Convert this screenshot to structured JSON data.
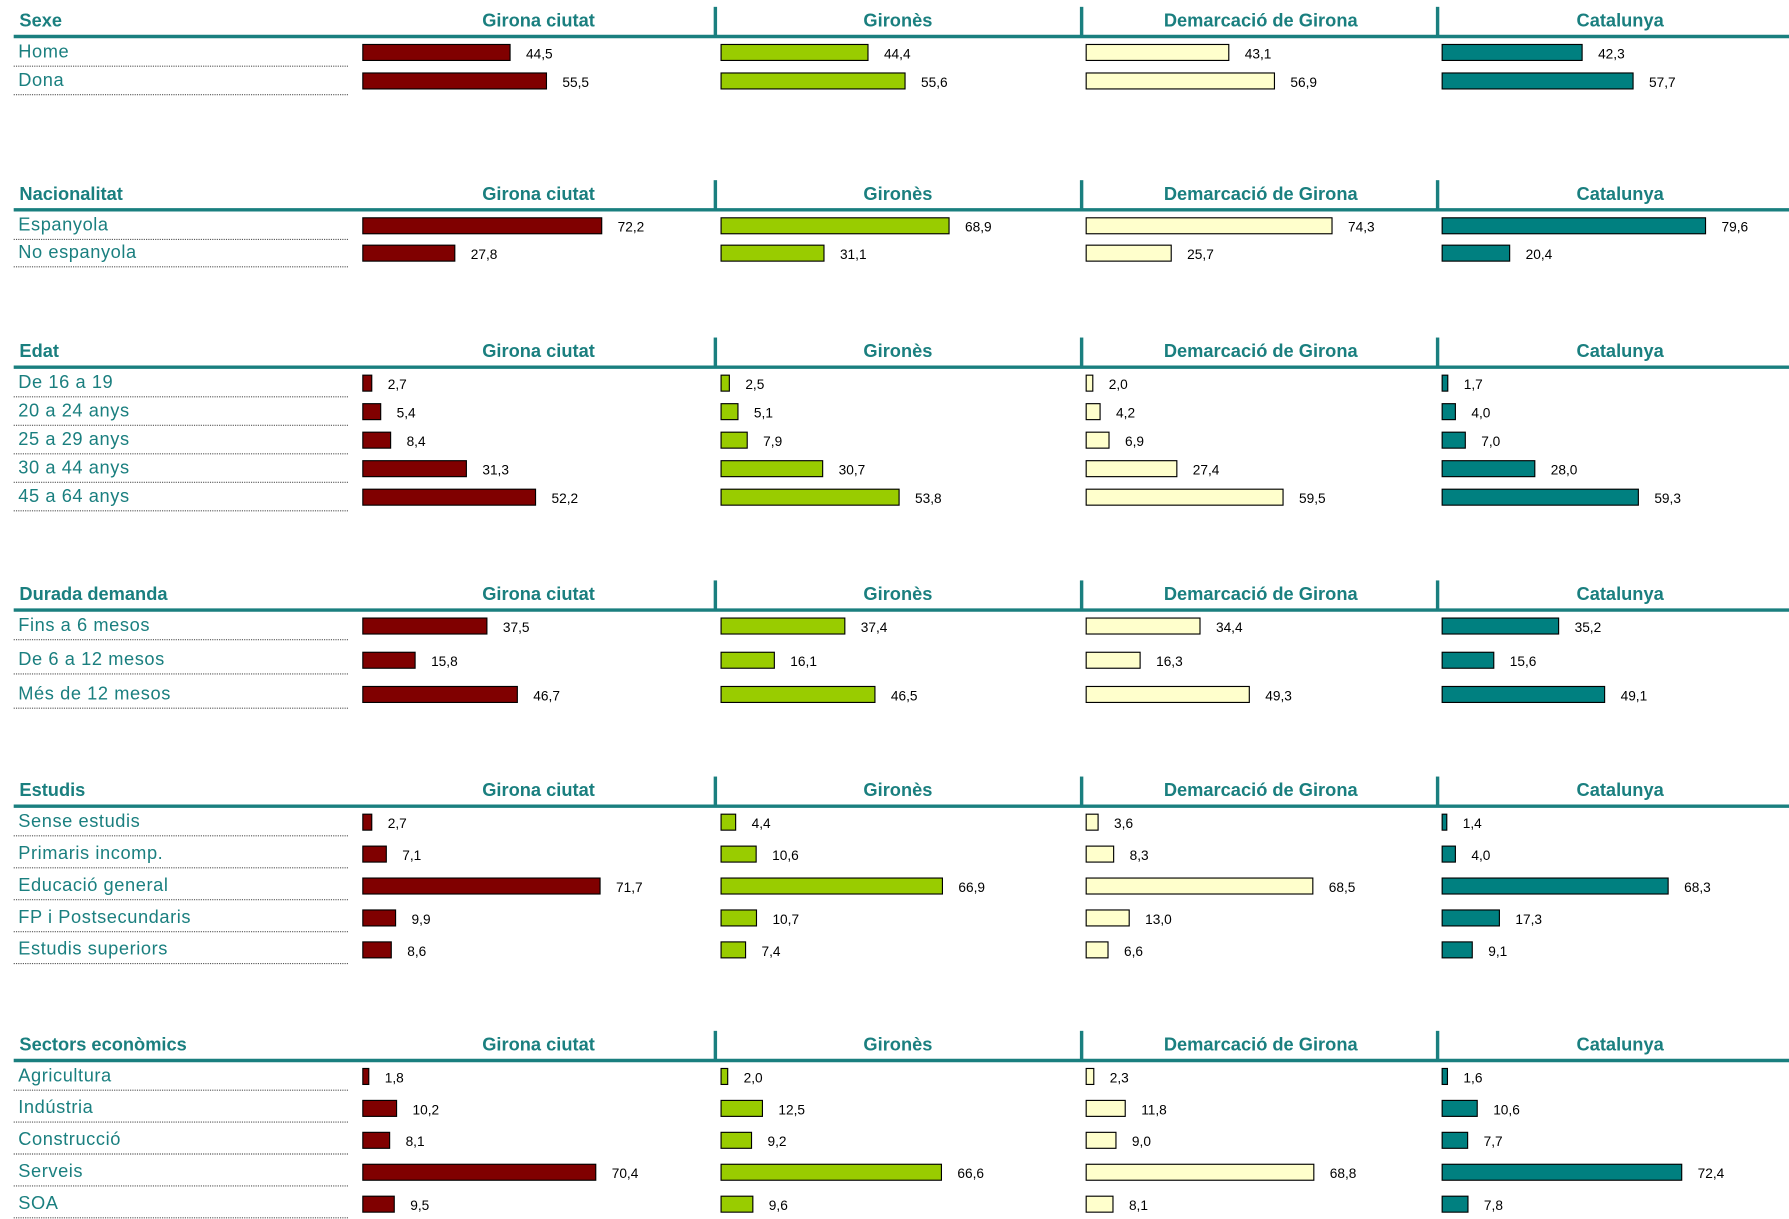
{
  "chart_data": [
    {
      "type": "bar",
      "title": "Sexe",
      "categories": [
        "Home",
        "Dona"
      ],
      "series": [
        {
          "name": "Girona ciutat",
          "color": "#800000",
          "values": [
            44.5,
            55.5
          ],
          "value_labels": [
            "44,5",
            "55,5"
          ]
        },
        {
          "name": "Gironès",
          "color": "#99cc00",
          "values": [
            44.4,
            55.6
          ],
          "value_labels": [
            "44,4",
            "55,6"
          ]
        },
        {
          "name": "Demarcació de Girona",
          "color": "#ffffcc",
          "values": [
            43.1,
            56.9
          ],
          "value_labels": [
            "43,1",
            "56,9"
          ]
        },
        {
          "name": "Catalunya",
          "color": "#008080",
          "values": [
            42.3,
            57.7
          ],
          "value_labels": [
            "42,3",
            "57,7"
          ]
        }
      ]
    },
    {
      "type": "bar",
      "title": "Nacionalitat",
      "categories": [
        "Espanyola",
        "No espanyola"
      ],
      "series": [
        {
          "name": "Girona ciutat",
          "color": "#800000",
          "values": [
            72.2,
            27.8
          ],
          "value_labels": [
            "72,2",
            "27,8"
          ]
        },
        {
          "name": "Gironès",
          "color": "#99cc00",
          "values": [
            68.9,
            31.1
          ],
          "value_labels": [
            "68,9",
            "31,1"
          ]
        },
        {
          "name": "Demarcació de Girona",
          "color": "#ffffcc",
          "values": [
            74.3,
            25.7
          ],
          "value_labels": [
            "74,3",
            "25,7"
          ]
        },
        {
          "name": "Catalunya",
          "color": "#008080",
          "values": [
            79.6,
            20.4
          ],
          "value_labels": [
            "79,6",
            "20,4"
          ]
        }
      ]
    },
    {
      "type": "bar",
      "title": "Edat",
      "categories": [
        "De 16 a 19",
        "20 a 24 anys",
        "25 a 29 anys",
        "30 a 44 anys",
        "45 a 64 anys"
      ],
      "series": [
        {
          "name": "Girona ciutat",
          "color": "#800000",
          "values": [
            2.7,
            5.4,
            8.4,
            31.3,
            52.2
          ],
          "value_labels": [
            "2,7",
            "5,4",
            "8,4",
            "31,3",
            "52,2"
          ]
        },
        {
          "name": "Gironès",
          "color": "#99cc00",
          "values": [
            2.5,
            5.1,
            7.9,
            30.7,
            53.8
          ],
          "value_labels": [
            "2,5",
            "5,1",
            "7,9",
            "30,7",
            "53,8"
          ]
        },
        {
          "name": "Demarcació de Girona",
          "color": "#ffffcc",
          "values": [
            2,
            4.2,
            6.9,
            27.4,
            59.5
          ],
          "value_labels": [
            "2,0",
            "4,2",
            "6,9",
            "27,4",
            "59,5"
          ]
        },
        {
          "name": "Catalunya",
          "color": "#008080",
          "values": [
            1.7,
            4,
            7,
            28,
            59.3
          ],
          "value_labels": [
            "1,7",
            "4,0",
            "7,0",
            "28,0",
            "59,3"
          ]
        }
      ]
    },
    {
      "type": "bar",
      "title": "Durada demanda",
      "categories": [
        "Fins a 6 mesos",
        "De 6 a 12 mesos",
        "Més de 12 mesos"
      ],
      "series": [
        {
          "name": "Girona ciutat",
          "color": "#800000",
          "values": [
            37.5,
            15.8,
            46.7
          ],
          "value_labels": [
            "37,5",
            "15,8",
            "46,7"
          ]
        },
        {
          "name": "Gironès",
          "color": "#99cc00",
          "values": [
            37.4,
            16.1,
            46.5
          ],
          "value_labels": [
            "37,4",
            "16,1",
            "46,5"
          ]
        },
        {
          "name": "Demarcació de Girona",
          "color": "#ffffcc",
          "values": [
            34.4,
            16.3,
            49.3
          ],
          "value_labels": [
            "34,4",
            "16,3",
            "49,3"
          ]
        },
        {
          "name": "Catalunya",
          "color": "#008080",
          "values": [
            35.2,
            15.6,
            49.1
          ],
          "value_labels": [
            "35,2",
            "15,6",
            "49,1"
          ]
        }
      ]
    },
    {
      "type": "bar",
      "title": "Estudis",
      "categories": [
        "Sense estudis",
        "Primaris incomp.",
        "Educació general",
        "FP i Postsecundaris",
        "Estudis superiors"
      ],
      "series": [
        {
          "name": "Girona ciutat",
          "color": "#800000",
          "values": [
            2.7,
            7.1,
            71.7,
            9.9,
            8.6
          ],
          "value_labels": [
            "2,7",
            "7,1",
            "71,7",
            "9,9",
            "8,6"
          ]
        },
        {
          "name": "Gironès",
          "color": "#99cc00",
          "values": [
            4.4,
            10.6,
            66.9,
            10.7,
            7.4
          ],
          "value_labels": [
            "4,4",
            "10,6",
            "66,9",
            "10,7",
            "7,4"
          ]
        },
        {
          "name": "Demarcació de Girona",
          "color": "#ffffcc",
          "values": [
            3.6,
            8.3,
            68.5,
            13,
            6.6
          ],
          "value_labels": [
            "3,6",
            "8,3",
            "68,5",
            "13,0",
            "6,6"
          ]
        },
        {
          "name": "Catalunya",
          "color": "#008080",
          "values": [
            1.4,
            4,
            68.3,
            17.3,
            9.1
          ],
          "value_labels": [
            "1,4",
            "4,0",
            "68,3",
            "17,3",
            "9,1"
          ]
        }
      ]
    },
    {
      "type": "bar",
      "title": "Sectors econòmics",
      "categories": [
        "Agricultura",
        "Indústria",
        "Construcció",
        "Serveis",
        "SOA"
      ],
      "series": [
        {
          "name": "Girona ciutat",
          "color": "#800000",
          "values": [
            1.8,
            10.2,
            8.1,
            70.4,
            9.5
          ],
          "value_labels": [
            "1,8",
            "10,2",
            "8,1",
            "70,4",
            "9,5"
          ]
        },
        {
          "name": "Gironès",
          "color": "#99cc00",
          "values": [
            2,
            12.5,
            9.2,
            66.6,
            9.6
          ],
          "value_labels": [
            "2,0",
            "12,5",
            "9,2",
            "66,6",
            "9,6"
          ]
        },
        {
          "name": "Demarcació de Girona",
          "color": "#ffffcc",
          "values": [
            2.3,
            11.8,
            9,
            68.8,
            8.1
          ],
          "value_labels": [
            "2,3",
            "11,8",
            "9,0",
            "68,8",
            "8,1"
          ]
        },
        {
          "name": "Catalunya",
          "color": "#008080",
          "values": [
            1.6,
            10.6,
            7.7,
            72.4,
            7.8
          ],
          "value_labels": [
            "1,6",
            "10,6",
            "7,7",
            "72,4",
            "7,8"
          ]
        }
      ]
    }
  ]
}
